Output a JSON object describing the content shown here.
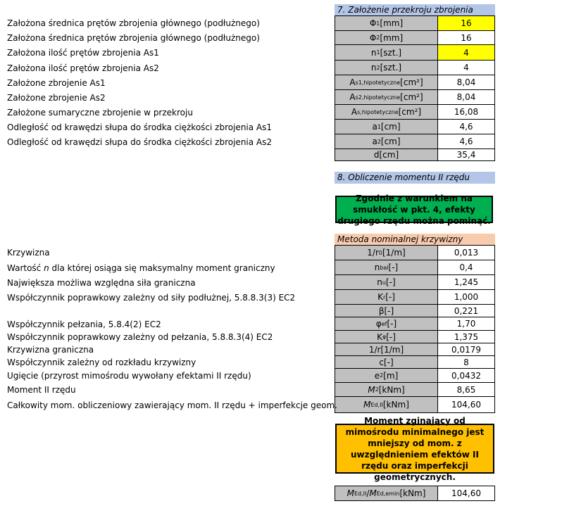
{
  "section7": {
    "title": "7. Założenie przekroju zbrojenia",
    "header_color": "#b4c6e7",
    "rows": [
      {
        "label": "Założona średnica prętów zbrojenia głównego (podłużnego)",
        "sym": "Φ",
        "sub": "1",
        "unit": "[mm]",
        "value": "16",
        "highlight": true
      },
      {
        "label": "Założona średnica prętów zbrojenia głównego (podłużnego)",
        "sym": "Φ",
        "sub": "2",
        "unit": "[mm]",
        "value": "16"
      },
      {
        "label": "Założona ilość prętów zbrojenia As1",
        "sym": "n",
        "sub": "1",
        "unit": "[szt.]",
        "value": "4",
        "highlight": true
      },
      {
        "label": "Założona ilość prętów zbrojenia As2",
        "sym": "n",
        "sub": "2",
        "unit": "[szt.]",
        "value": "4"
      },
      {
        "label": "Założone zbrojenie As1",
        "sym": "A",
        "sub": "s1,hipotetyczne",
        "unit": "[cm²]",
        "value": "8,04"
      },
      {
        "label": "Założone zbrojenie As2",
        "sym": "A",
        "sub": "s2,hipotetyczne",
        "unit": "[cm²]",
        "value": "8,04"
      },
      {
        "label": "Założone sumaryczne zbrojenie w przekroju",
        "sym": "A",
        "sub": "s,hipotetyczne",
        "unit": "[cm²]",
        "value": "16,08"
      },
      {
        "label": "Odległość od krawędzi słupa do środka ciężkości zbrojenia As1",
        "sym": "a",
        "sub": "1",
        "unit": "[cm]",
        "value": "4,6"
      },
      {
        "label": "Odległość od krawędzi słupa do środka ciężkości zbrojenia As2",
        "sym": "a",
        "sub": "2",
        "unit": "[cm]",
        "value": "4,6"
      },
      {
        "label": "",
        "sym": "d",
        "sub": "",
        "unit": "[cm]",
        "value": "35,4"
      }
    ]
  },
  "section8": {
    "title": "8. Obliczenie momentu II rzędu",
    "header_color": "#b4c6e7",
    "note": "Zgodnie z warunkiem na smukłość w pkt. 4, efekty drugiego rzędu można pominąć.",
    "note_color": "#00b050"
  },
  "method": {
    "title": "Metoda nominalnej krzywizny",
    "header_color": "#f8cbad",
    "rows": [
      {
        "label": "Krzywizna",
        "sym": "1/r",
        "sub": "0",
        "unit": "[1/m]",
        "value": "0,013"
      },
      {
        "label_pre": "Wartość ",
        "label_it": "n",
        "label_post": " dla której osiąga się maksymalny moment graniczny",
        "sym": "n",
        "sub": "bal",
        "unit": "[-]",
        "value": "0,4"
      },
      {
        "label": "Największa możliwa względna siła graniczna",
        "sym": "n",
        "sub": "u",
        "unit": "[-]",
        "value": "1,245"
      },
      {
        "label": "Współczynnik poprawkowy zależny od siły podłużnej, 5.8.8.3(3) EC2",
        "sym": "K",
        "sub": "r",
        "unit": "[-]",
        "value": "1,000"
      },
      {
        "label": "",
        "sym": "β",
        "sub": "",
        "unit": "[-]",
        "value": "0,221"
      },
      {
        "label": "Współczynnik pełzania, 5.8.4(2) EC2",
        "sym": "φ",
        "sub": "ef",
        "unit": "[-]",
        "value": "1,70"
      },
      {
        "label": "Współczynnik poprawkowy zależny od pełzania, 5.8.8.3(4) EC2",
        "sym": "K",
        "sub": "φ",
        "unit": "[-]",
        "value": "1,375"
      },
      {
        "label": "Krzywizna graniczna",
        "sym": "1/r",
        "sub": "",
        "unit": "[1/m]",
        "value": "0,0179"
      },
      {
        "label": "Współczynnik zależny od rozkładu krzywizny",
        "sym": "c",
        "sub": "",
        "unit": "[-]",
        "value": "8"
      },
      {
        "label": "Ugięcie (przyrost mimośrodu wywołany efektami II rzędu)",
        "sym": "e",
        "sub": "2",
        "unit": "[m]",
        "value": "0,0432"
      },
      {
        "label": "Moment II rzędu",
        "sym": "M",
        "sub": "2",
        "unit": "[kNm]",
        "value": "8,65",
        "italic": true
      },
      {
        "label": "Całkowity mom. obliczeniowy zawierający mom. II rzędu + imperfekcje geom.",
        "sym": "M",
        "sub": "Ed,II",
        "unit": "[kNm]",
        "value": "104,60",
        "italic": true
      }
    ],
    "note": "Moment zginający od mimośrodu minimalnego jest mniejszy od mom. z uwzględnieniem efektów II rzędu oraz imperfekcji geometrycznych.",
    "note_color": "#ffc000",
    "final": {
      "sym1": "M",
      "sub1": "Ed,II",
      "sep": " / ",
      "sym2": "M",
      "sub2": "Ed,emin",
      "unit": "[kNm]",
      "value": "104,60"
    }
  }
}
